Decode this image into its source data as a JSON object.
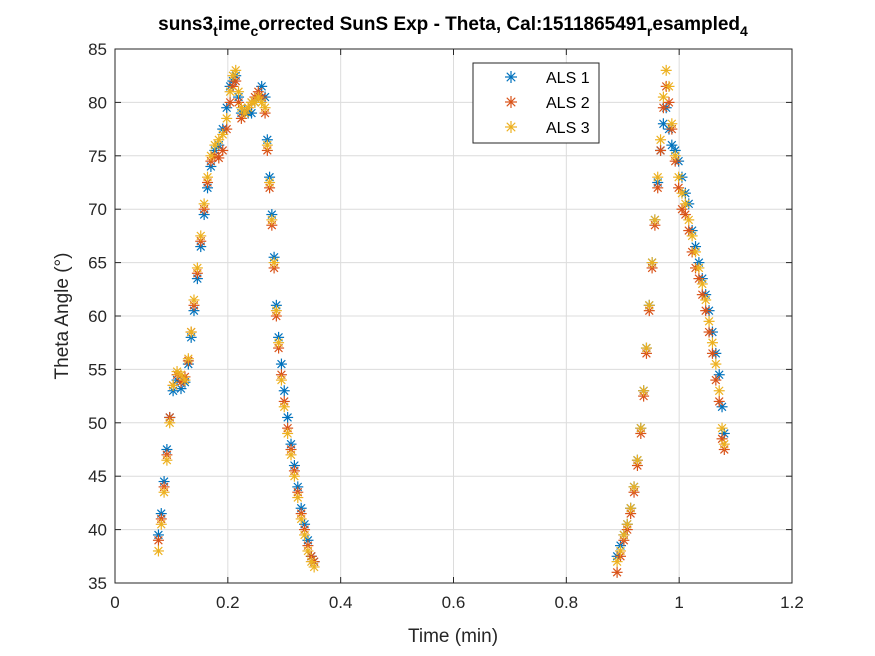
{
  "chart_data": {
    "type": "scatter",
    "title": {
      "parts": [
        "suns3",
        "t",
        "ime",
        "c",
        "orrected SunS Exp - Theta, Cal:1511865491",
        "r",
        "esampled",
        "4"
      ],
      "subscript": [
        false,
        true,
        false,
        true,
        false,
        true,
        false,
        true
      ]
    },
    "xlabel": "Time (min)",
    "ylabel": "Theta Angle (°)",
    "xlim": [
      0,
      1.2
    ],
    "ylim": [
      35,
      85
    ],
    "xticks": [
      "0",
      "0.2",
      "0.4",
      "0.6",
      "0.8",
      "1",
      "1.2"
    ],
    "xtick_values": [
      0,
      0.2,
      0.4,
      0.6,
      0.8,
      1.0,
      1.2
    ],
    "yticks": [
      "35",
      "40",
      "45",
      "50",
      "55",
      "60",
      "65",
      "70",
      "75",
      "80",
      "85"
    ],
    "ytick_values": [
      35,
      40,
      45,
      50,
      55,
      60,
      65,
      70,
      75,
      80,
      85
    ],
    "grid": true,
    "legend_position": "top-right",
    "marker": "asterisk",
    "series": [
      {
        "name": "ALS 1",
        "color": "#0072BD",
        "x": [
          0.077,
          0.082,
          0.087,
          0.092,
          0.097,
          0.103,
          0.11,
          0.117,
          0.124,
          0.13,
          0.135,
          0.14,
          0.146,
          0.152,
          0.158,
          0.164,
          0.17,
          0.177,
          0.184,
          0.191,
          0.198,
          0.204,
          0.209,
          0.214,
          0.219,
          0.224,
          0.23,
          0.236,
          0.242,
          0.248,
          0.254,
          0.26,
          0.266,
          0.27,
          0.274,
          0.278,
          0.282,
          0.286,
          0.29,
          0.295,
          0.3,
          0.306,
          0.312,
          0.318,
          0.324,
          0.33,
          0.336,
          0.342,
          0.348,
          0.353,
          0.89,
          0.896,
          0.902,
          0.908,
          0.914,
          0.92,
          0.926,
          0.932,
          0.937,
          0.942,
          0.947,
          0.952,
          0.957,
          0.962,
          0.967,
          0.972,
          0.977,
          0.982,
          0.987,
          0.993,
          0.999,
          1.005,
          1.011,
          1.017,
          1.023,
          1.029,
          1.035,
          1.041,
          1.047,
          1.053,
          1.059,
          1.065,
          1.071,
          1.076,
          1.08
        ],
        "y": [
          39.5,
          41.5,
          44.5,
          47.5,
          50.5,
          53.0,
          54.0,
          53.2,
          53.8,
          55.5,
          58.0,
          60.5,
          63.5,
          66.5,
          69.5,
          72.0,
          74.0,
          75.5,
          76.0,
          77.5,
          79.5,
          81.5,
          82.0,
          82.5,
          80.5,
          79.0,
          79.2,
          79.0,
          79.0,
          80.0,
          80.5,
          81.5,
          80.5,
          76.5,
          73.0,
          69.5,
          65.5,
          61.0,
          58.0,
          55.5,
          53.0,
          50.5,
          48.0,
          46.0,
          44.0,
          42.0,
          40.5,
          39.0,
          37.5,
          37.0,
          37.5,
          38.5,
          39.5,
          40.5,
          42.0,
          44.0,
          46.5,
          49.5,
          53.0,
          57.0,
          61.0,
          65.0,
          69.0,
          72.5,
          75.5,
          78.0,
          79.5,
          77.5,
          76.0,
          75.5,
          74.5,
          73.0,
          71.5,
          70.5,
          68.0,
          66.5,
          65.0,
          63.5,
          62.0,
          60.5,
          58.5,
          56.5,
          54.5,
          51.5,
          49.0
        ]
      },
      {
        "name": "ALS 2",
        "color": "#D95319",
        "x": [
          0.077,
          0.082,
          0.087,
          0.092,
          0.097,
          0.103,
          0.11,
          0.117,
          0.124,
          0.13,
          0.135,
          0.14,
          0.146,
          0.152,
          0.158,
          0.164,
          0.17,
          0.177,
          0.184,
          0.191,
          0.198,
          0.204,
          0.209,
          0.214,
          0.219,
          0.224,
          0.23,
          0.236,
          0.242,
          0.248,
          0.254,
          0.26,
          0.266,
          0.27,
          0.274,
          0.278,
          0.282,
          0.286,
          0.29,
          0.295,
          0.3,
          0.306,
          0.312,
          0.318,
          0.324,
          0.33,
          0.336,
          0.342,
          0.348,
          0.353,
          0.89,
          0.896,
          0.902,
          0.908,
          0.914,
          0.92,
          0.926,
          0.932,
          0.937,
          0.942,
          0.947,
          0.952,
          0.957,
          0.962,
          0.967,
          0.972,
          0.977,
          0.982,
          0.987,
          0.993,
          0.999,
          1.005,
          1.011,
          1.017,
          1.023,
          1.029,
          1.035,
          1.041,
          1.047,
          1.053,
          1.059,
          1.065,
          1.071,
          1.076,
          1.08
        ],
        "y": [
          39.0,
          41.0,
          44.0,
          47.0,
          50.5,
          53.5,
          54.5,
          53.8,
          54.3,
          55.8,
          58.5,
          61.0,
          64.0,
          67.0,
          70.0,
          72.5,
          74.5,
          75.0,
          74.8,
          75.5,
          77.5,
          80.0,
          81.5,
          82.0,
          80.0,
          78.5,
          79.0,
          79.5,
          80.0,
          80.5,
          81.0,
          80.5,
          79.0,
          75.5,
          72.0,
          68.5,
          64.5,
          60.0,
          57.0,
          54.5,
          52.0,
          49.5,
          47.5,
          45.5,
          43.5,
          41.5,
          40.0,
          38.5,
          37.5,
          37.0,
          36.0,
          37.5,
          39.0,
          40.0,
          41.5,
          43.5,
          46.0,
          49.0,
          52.5,
          56.5,
          60.5,
          64.5,
          68.5,
          72.0,
          75.5,
          79.5,
          81.5,
          80.0,
          77.5,
          74.5,
          72.0,
          70.0,
          69.5,
          68.0,
          66.0,
          64.5,
          63.5,
          62.0,
          60.5,
          58.5,
          56.5,
          54.0,
          52.0,
          48.5,
          47.5
        ]
      },
      {
        "name": "ALS 3",
        "color": "#EDB120",
        "x": [
          0.077,
          0.082,
          0.087,
          0.092,
          0.097,
          0.103,
          0.11,
          0.117,
          0.124,
          0.13,
          0.135,
          0.14,
          0.146,
          0.152,
          0.158,
          0.164,
          0.17,
          0.177,
          0.184,
          0.191,
          0.198,
          0.204,
          0.209,
          0.214,
          0.219,
          0.224,
          0.23,
          0.236,
          0.242,
          0.248,
          0.254,
          0.26,
          0.266,
          0.27,
          0.274,
          0.278,
          0.282,
          0.286,
          0.29,
          0.295,
          0.3,
          0.306,
          0.312,
          0.318,
          0.324,
          0.33,
          0.336,
          0.342,
          0.348,
          0.353,
          0.89,
          0.896,
          0.902,
          0.908,
          0.914,
          0.92,
          0.926,
          0.932,
          0.937,
          0.942,
          0.947,
          0.952,
          0.957,
          0.962,
          0.967,
          0.972,
          0.977,
          0.982,
          0.987,
          0.993,
          0.999,
          1.005,
          1.011,
          1.017,
          1.023,
          1.029,
          1.035,
          1.041,
          1.047,
          1.053,
          1.059,
          1.065,
          1.071,
          1.076,
          1.08
        ],
        "y": [
          38.0,
          40.5,
          43.5,
          46.5,
          50.0,
          53.5,
          54.8,
          54.5,
          54.0,
          56.0,
          58.5,
          61.5,
          64.5,
          67.5,
          70.5,
          73.0,
          75.0,
          76.0,
          76.5,
          77.0,
          78.5,
          81.0,
          82.5,
          83.0,
          81.0,
          79.5,
          79.0,
          79.5,
          80.0,
          80.0,
          80.5,
          80.0,
          79.5,
          76.0,
          72.5,
          69.0,
          65.0,
          60.5,
          57.5,
          54.0,
          51.5,
          49.0,
          47.0,
          45.0,
          43.0,
          41.0,
          39.5,
          38.0,
          37.0,
          36.5,
          37.0,
          38.0,
          39.5,
          40.5,
          42.0,
          44.0,
          46.5,
          49.5,
          53.0,
          57.0,
          61.0,
          65.0,
          69.0,
          73.0,
          76.5,
          80.5,
          83.0,
          81.5,
          78.0,
          75.0,
          73.0,
          71.5,
          70.5,
          69.0,
          67.5,
          66.0,
          64.5,
          63.0,
          61.5,
          59.5,
          57.5,
          55.5,
          53.0,
          49.5,
          48.0
        ]
      }
    ]
  }
}
